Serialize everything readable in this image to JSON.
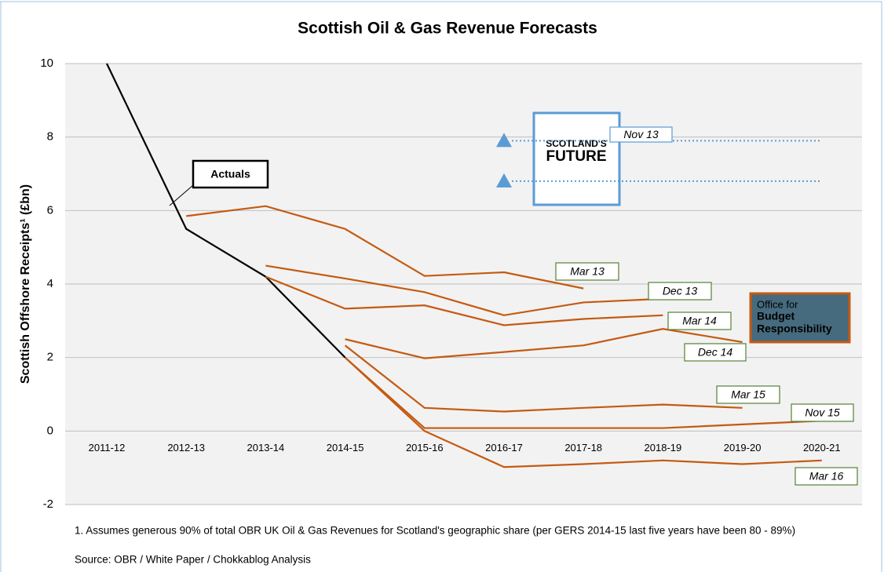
{
  "chart_data": {
    "type": "line",
    "title": "Scottish Oil & Gas Revenue Forecasts",
    "y_label": "Scottish Offshore Receipts¹ (£bn)",
    "footnote": "1.  Assumes generous 90% of total OBR UK Oil & Gas Revenues for Scotland's geographic share (per GERS 2014-15 last five years have been 80 - 89%)",
    "source": "Source: OBR / White Paper / Chokkablog Analysis",
    "categories": [
      "2011-12",
      "2012-13",
      "2013-14",
      "2014-15",
      "2015-16",
      "2016-17",
      "2017-18",
      "2018-19",
      "2019-20",
      "2020-21"
    ],
    "ylim": [
      -2,
      10
    ],
    "yticks": [
      -2,
      0,
      2,
      4,
      6,
      8,
      10
    ],
    "grid": true,
    "series": [
      {
        "name": "Actuals",
        "color": "#000000",
        "values": [
          10,
          5.5,
          4.2,
          2.0,
          null,
          null,
          null,
          null,
          null,
          null
        ]
      },
      {
        "name": "Mar 13",
        "color": "#c55a11",
        "values": [
          null,
          5.85,
          6.12,
          5.5,
          4.22,
          4.32,
          3.88,
          null,
          null,
          null
        ]
      },
      {
        "name": "Dec 13",
        "color": "#c55a11",
        "values": [
          null,
          null,
          4.5,
          4.15,
          3.78,
          3.15,
          3.5,
          3.6,
          null,
          null
        ]
      },
      {
        "name": "Mar 14",
        "color": "#c55a11",
        "values": [
          null,
          null,
          4.2,
          3.33,
          3.42,
          2.88,
          3.05,
          3.15,
          null,
          null
        ]
      },
      {
        "name": "Dec 14",
        "color": "#c55a11",
        "values": [
          null,
          null,
          null,
          2.5,
          1.98,
          2.15,
          2.33,
          2.78,
          2.42,
          null
        ]
      },
      {
        "name": "Mar 15",
        "color": "#c55a11",
        "values": [
          null,
          null,
          null,
          2.33,
          0.63,
          0.53,
          0.63,
          0.72,
          0.63,
          null
        ]
      },
      {
        "name": "Nov 15",
        "color": "#c55a11",
        "values": [
          null,
          null,
          null,
          2.0,
          0.08,
          0.08,
          0.08,
          0.08,
          0.18,
          0.28
        ]
      },
      {
        "name": "Mar 16",
        "color": "#c55a11",
        "values": [
          null,
          null,
          null,
          2.0,
          0.0,
          -0.98,
          -0.9,
          -0.8,
          -0.9,
          -0.8
        ]
      },
      {
        "name": "Nov 13",
        "color": "#5b9bd5",
        "dotted": true,
        "values": [
          null,
          null,
          null,
          null,
          null,
          7.9,
          7.9,
          7.9,
          7.9,
          7.9
        ]
      },
      {
        "color": "#5b9bd5",
        "dotted": true,
        "values": [
          null,
          null,
          null,
          null,
          null,
          6.8,
          6.8,
          6.8,
          6.8,
          6.8
        ]
      }
    ],
    "images": {
      "white_paper": [
        "SCOTLAND'S",
        "FUTURE"
      ],
      "obr_logo": [
        "Office for",
        "Budget",
        "Responsibility"
      ]
    }
  }
}
